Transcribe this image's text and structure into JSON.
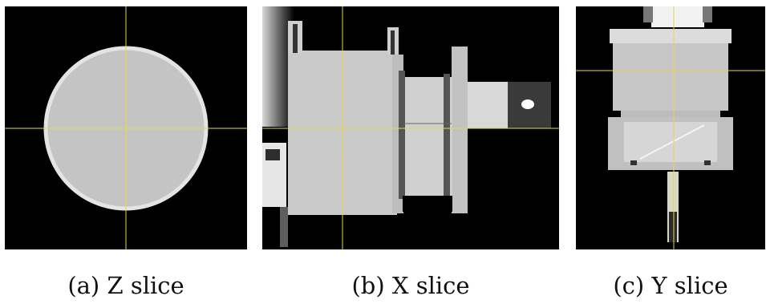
{
  "figure": {
    "panels": [
      {
        "id": "z",
        "caption": "(a) Z slice"
      },
      {
        "id": "x",
        "caption": "(b) X slice"
      },
      {
        "id": "y",
        "caption": "(c) Y slice"
      }
    ]
  },
  "colors": {
    "crosshair": "#e8d845",
    "background": "#000000",
    "material": "#c8c8c8"
  }
}
